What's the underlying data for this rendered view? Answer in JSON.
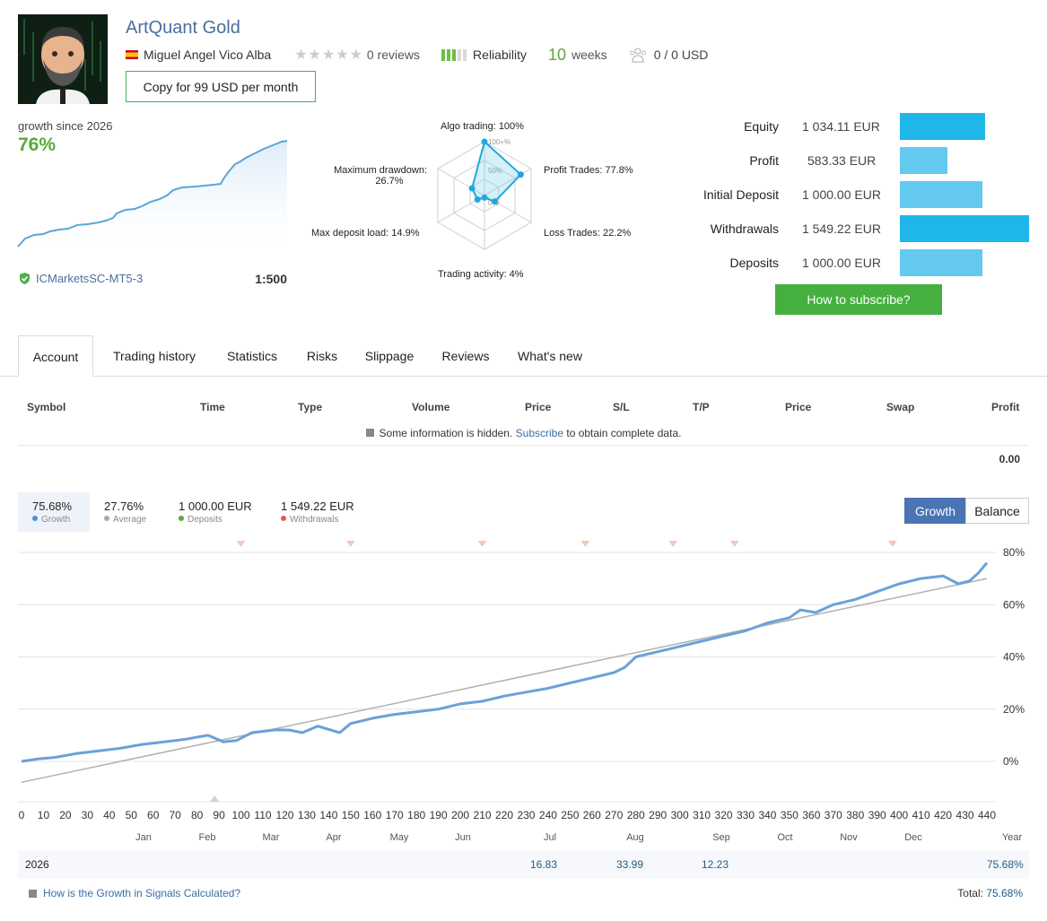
{
  "header": {
    "title": "ArtQuant Gold",
    "author": "Miguel Angel Vico Alba",
    "reviews": "0 reviews",
    "reliability_label": "Reliability",
    "reliability_level": 0.6,
    "weeks_num": "10",
    "weeks_unit": "weeks",
    "subscribers": "0 / 0 USD",
    "copy_button": "Copy for 99 USD per month"
  },
  "growth": {
    "label": "growth since 2026",
    "value": "76%",
    "broker": "ICMarketsSC-MT5-3",
    "leverage": "1:500"
  },
  "radar": {
    "algo": "Algo trading: 100%",
    "profit_trades": "Profit Trades: 77.8%",
    "loss_trades": "Loss Trades: 22.2%",
    "activity": "Trading activity: 4%",
    "deposit_load": "Max deposit load: 14.9%",
    "drawdown_1": "Maximum drawdown:",
    "drawdown_2": "26.7%",
    "scale_100": "100+%",
    "scale_50": "50%",
    "scale_0": "0%",
    "values": [
      100,
      77.8,
      22.2,
      4,
      14.9,
      26.7
    ]
  },
  "stats": [
    {
      "label": "Equity",
      "value": "1 034.11 EUR",
      "level": 0.66,
      "color": "#1fb6ea"
    },
    {
      "label": "Profit",
      "value": "583.33 EUR",
      "level": 0.37,
      "color": "#63c9ef"
    },
    {
      "label": "Initial Deposit",
      "value": "1 000.00 EUR",
      "level": 0.64,
      "color": "#63c9ef"
    },
    {
      "label": "Withdrawals",
      "value": "1 549.22 EUR",
      "level": 1.0,
      "color": "#1fb6ea"
    },
    {
      "label": "Deposits",
      "value": "1 000.00 EUR",
      "level": 0.64,
      "color": "#63c9ef"
    }
  ],
  "subscribe_button": "How to subscribe?",
  "tabs": [
    "Account",
    "Trading history",
    "Statistics",
    "Risks",
    "Slippage",
    "Reviews",
    "What's new"
  ],
  "table": {
    "headers": [
      "Symbol",
      "Time",
      "Type",
      "Volume",
      "Price",
      "S/L",
      "T/P",
      "Price",
      "Swap",
      "Profit"
    ],
    "hidden_text": "Some information is hidden.",
    "hidden_link": "Subscribe",
    "hidden_suffix": "to obtain complete data.",
    "total_profit": "0.00"
  },
  "legend": {
    "growth_val": "75.68%",
    "growth_name": "Growth",
    "average_val": "27.76%",
    "average_name": "Average",
    "deposits_val": "1 000.00 EUR",
    "deposits_name": "Deposits",
    "withdrawals_val": "1 549.22 EUR",
    "withdrawals_name": "Withdrawals",
    "colors": {
      "growth": "#4a90d9",
      "average": "#aaaaaa",
      "deposits": "#5aa83a",
      "withdrawals": "#e05a4a"
    }
  },
  "chart_toggle": {
    "growth": "Growth",
    "balance": "Balance"
  },
  "chart_data": {
    "type": "line",
    "x_ticks": [
      0,
      10,
      20,
      30,
      40,
      50,
      60,
      70,
      80,
      90,
      100,
      110,
      120,
      130,
      140,
      150,
      160,
      170,
      180,
      190,
      200,
      210,
      220,
      230,
      240,
      250,
      260,
      270,
      280,
      290,
      300,
      310,
      320,
      330,
      340,
      350,
      360,
      370,
      380,
      390,
      400,
      410,
      420,
      430,
      440
    ],
    "months": [
      "Jan",
      "Feb",
      "Mar",
      "Apr",
      "May",
      "Jun",
      "Jul",
      "Aug",
      "Sep",
      "Oct",
      "Nov",
      "Dec",
      "Year"
    ],
    "y_ticks": [
      "80%",
      "60%",
      "40%",
      "20%",
      "0%"
    ],
    "ylim": [
      -15,
      80
    ],
    "xlim": [
      0,
      440
    ],
    "series": [
      {
        "name": "Growth",
        "points": [
          [
            0,
            0
          ],
          [
            8,
            1
          ],
          [
            15,
            1.5
          ],
          [
            25,
            3
          ],
          [
            35,
            4
          ],
          [
            45,
            5
          ],
          [
            55,
            6.5
          ],
          [
            65,
            7.5
          ],
          [
            75,
            8.5
          ],
          [
            85,
            10
          ],
          [
            92,
            7.5
          ],
          [
            98,
            8
          ],
          [
            105,
            11
          ],
          [
            115,
            12
          ],
          [
            122,
            12
          ],
          [
            128,
            11
          ],
          [
            135,
            13.5
          ],
          [
            145,
            11
          ],
          [
            150,
            14.5
          ],
          [
            160,
            16.5
          ],
          [
            170,
            18
          ],
          [
            180,
            19
          ],
          [
            190,
            20
          ],
          [
            200,
            22
          ],
          [
            210,
            23
          ],
          [
            220,
            25
          ],
          [
            230,
            26.5
          ],
          [
            240,
            28
          ],
          [
            250,
            30
          ],
          [
            260,
            32
          ],
          [
            270,
            34
          ],
          [
            275,
            36
          ],
          [
            280,
            40
          ],
          [
            290,
            42
          ],
          [
            300,
            44
          ],
          [
            310,
            46
          ],
          [
            320,
            48
          ],
          [
            330,
            50
          ],
          [
            340,
            53
          ],
          [
            350,
            55
          ],
          [
            355,
            58
          ],
          [
            362,
            57
          ],
          [
            370,
            60
          ],
          [
            380,
            62
          ],
          [
            390,
            65
          ],
          [
            400,
            68
          ],
          [
            410,
            70
          ],
          [
            420,
            71
          ],
          [
            427,
            68
          ],
          [
            432,
            69
          ],
          [
            436,
            72
          ],
          [
            440,
            76
          ]
        ]
      },
      {
        "name": "Average",
        "points": [
          [
            0,
            -8
          ],
          [
            440,
            70
          ]
        ]
      }
    ],
    "withdrawal_marks": [
      100,
      150,
      210,
      257,
      297,
      325,
      397
    ],
    "deposit_marks": [
      88
    ]
  },
  "year_row": {
    "year": "2026",
    "jul": "16.83",
    "aug": "33.99",
    "sep": "12.23",
    "year_total": "75.68%"
  },
  "footer": {
    "faq": "How is the Growth in Signals Calculated?",
    "total_label": "Total:",
    "total_value": "75.68%"
  }
}
